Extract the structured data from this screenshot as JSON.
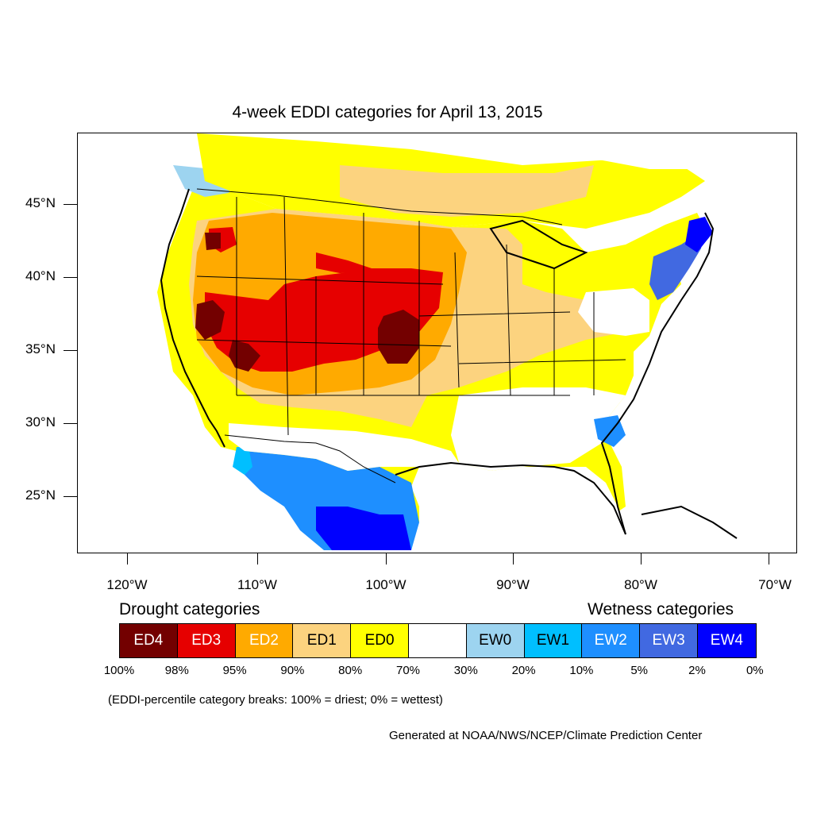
{
  "title": "4-week EDDI categories for April 13, 2015",
  "axes": {
    "y_labels": [
      "45°N",
      "40°N",
      "35°N",
      "30°N",
      "25°N"
    ],
    "x_labels": [
      "120°W",
      "110°W",
      "100°W",
      "90°W",
      "80°W",
      "70°W"
    ]
  },
  "legend": {
    "drought_title": "Drought categories",
    "wetness_title": "Wetness categories",
    "categories": [
      {
        "label": "ED4",
        "color": "#730000",
        "text_color": "#ffffff"
      },
      {
        "label": "ED3",
        "color": "#e60000",
        "text_color": "#ffffff"
      },
      {
        "label": "ED2",
        "color": "#ffaa00",
        "text_color": "#ffffff"
      },
      {
        "label": "ED1",
        "color": "#fcd37f",
        "text_color": "#000000"
      },
      {
        "label": "ED0",
        "color": "#ffff00",
        "text_color": "#000000"
      },
      {
        "label": "",
        "color": "#ffffff",
        "text_color": "#000000"
      },
      {
        "label": "EW0",
        "color": "#9dd4f0",
        "text_color": "#000000"
      },
      {
        "label": "EW1",
        "color": "#00bfff",
        "text_color": "#000000"
      },
      {
        "label": "EW2",
        "color": "#1e8fff",
        "text_color": "#ffffff"
      },
      {
        "label": "EW3",
        "color": "#4169e1",
        "text_color": "#ffffff"
      },
      {
        "label": "EW4",
        "color": "#0000ff",
        "text_color": "#ffffff"
      }
    ],
    "percentiles": [
      "100%",
      "98%",
      "95%",
      "90%",
      "80%",
      "70%",
      "30%",
      "20%",
      "10%",
      "5%",
      "2%",
      "0%"
    ],
    "note": "(EDDI-percentile category breaks: 100% = driest; 0% = wettest)"
  },
  "credit": "Generated at NOAA/NWS/NCEP/Climate Prediction Center"
}
